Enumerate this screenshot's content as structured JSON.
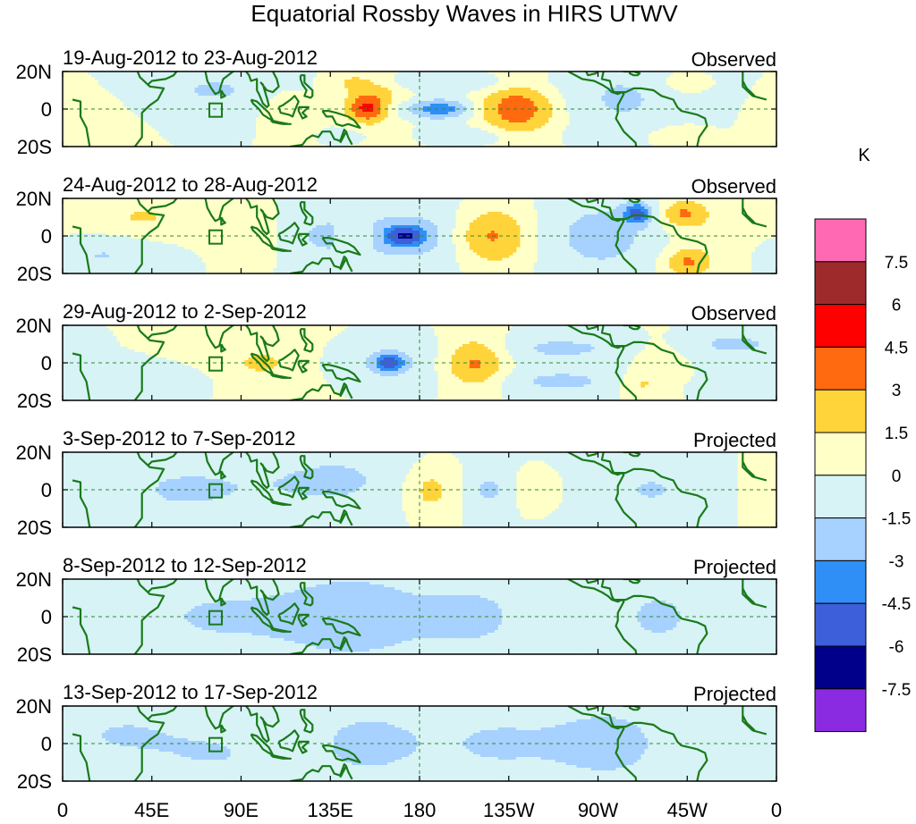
{
  "chart_data": {
    "type": "heatmap",
    "title": "Equatorial Rossby Waves in HIRS UTWV",
    "colorbar": {
      "unit_label": "K",
      "levels": [
        "7.5",
        "6",
        "4.5",
        "3",
        "1.5",
        "0",
        "-1.5",
        "-3",
        "-4.5",
        "-6",
        "-7.5"
      ],
      "colors": [
        "#ff69b4",
        "#9e2a2b",
        "#ff0000",
        "#ff6a10",
        "#ffd43b",
        "#ffffc8",
        "#d7f3f5",
        "#a7d1ff",
        "#2f8ff7",
        "#3d5fd9",
        "#00008b",
        "#8a2be2"
      ]
    },
    "x_ticks": [
      "0",
      "45E",
      "90E",
      "135E",
      "180",
      "135W",
      "90W",
      "45W",
      "0"
    ],
    "y_ticks": [
      "20N",
      "0",
      "20S"
    ],
    "x_range_deg": [
      0,
      360
    ],
    "y_range_deg": [
      -20,
      20
    ],
    "panels": [
      {
        "period": "19-Aug-2012 to 23-Aug-2012",
        "status": "Observed",
        "anomalies": [
          {
            "lon": 112,
            "lat": 0,
            "sx": 10,
            "sy": 9,
            "amp": 1.8
          },
          {
            "lon": 145,
            "lat": 15,
            "sx": 12,
            "sy": 5,
            "amp": 1.8
          },
          {
            "lon": 153,
            "lat": 0,
            "sx": 7,
            "sy": 5,
            "amp": 4.6
          },
          {
            "lon": 168,
            "lat": -15,
            "sx": 10,
            "sy": 5,
            "amp": 1.8
          },
          {
            "lon": 160,
            "lat": 10,
            "sx": 12,
            "sy": 5,
            "amp": 1.7
          },
          {
            "lon": 190,
            "lat": 0,
            "sx": 12,
            "sy": 4,
            "amp": -4.6
          },
          {
            "lon": 192,
            "lat": 14,
            "sx": 30,
            "sy": 4,
            "amp": -2.0
          },
          {
            "lon": 192,
            "lat": -14,
            "sx": 30,
            "sy": 4,
            "amp": -2.0
          },
          {
            "lon": 230,
            "lat": 0,
            "sx": 13,
            "sy": 10,
            "amp": 3.6
          },
          {
            "lon": 280,
            "lat": 5,
            "sx": 25,
            "sy": 15,
            "amp": -1.9
          },
          {
            "lon": 313,
            "lat": 14,
            "sx": 8,
            "sy": 4,
            "amp": 1.6
          },
          {
            "lon": 310,
            "lat": -14,
            "sx": 10,
            "sy": 4,
            "amp": 1.6
          },
          {
            "lon": 77,
            "lat": 10,
            "sx": 40,
            "sy": 12,
            "amp": -1.6
          },
          {
            "lon": 20,
            "lat": 0,
            "sx": 20,
            "sy": 15,
            "amp": 0.8
          },
          {
            "lon": 210,
            "lat": 0,
            "sx": 50,
            "sy": 20,
            "amp": 0.7
          }
        ]
      },
      {
        "period": "24-Aug-2012 to 28-Aug-2012",
        "status": "Observed",
        "anomalies": [
          {
            "lon": 100,
            "lat": 0,
            "sx": 15,
            "sy": 10,
            "amp": 1.2
          },
          {
            "lon": 130,
            "lat": 0,
            "sx": 22,
            "sy": 10,
            "amp": -1.8
          },
          {
            "lon": 150,
            "lat": 0,
            "sx": 8,
            "sy": 4,
            "amp": 1.8
          },
          {
            "lon": 172,
            "lat": 0,
            "sx": 8,
            "sy": 4,
            "amp": -4.6
          },
          {
            "lon": 185,
            "lat": 0,
            "sx": 25,
            "sy": 13,
            "amp": -1.9
          },
          {
            "lon": 215,
            "lat": 0,
            "sx": 14,
            "sy": 11,
            "amp": 4.0
          },
          {
            "lon": 272,
            "lat": 0,
            "sx": 20,
            "sy": 14,
            "amp": -2.2
          },
          {
            "lon": 290,
            "lat": 12,
            "sx": 5,
            "sy": 4,
            "amp": -4.6
          },
          {
            "lon": 313,
            "lat": 12,
            "sx": 8,
            "sy": 5,
            "amp": 3.0
          },
          {
            "lon": 315,
            "lat": -14,
            "sx": 8,
            "sy": 5,
            "amp": 3.0
          },
          {
            "lon": 40,
            "lat": 10,
            "sx": 25,
            "sy": 8,
            "amp": 1.6
          },
          {
            "lon": 20,
            "lat": -10,
            "sx": 20,
            "sy": 8,
            "amp": -1.6
          },
          {
            "lon": 330,
            "lat": 0,
            "sx": 20,
            "sy": 15,
            "amp": 0.8
          }
        ]
      },
      {
        "period": "29-Aug-2012 to 2-Sep-2012",
        "status": "Observed",
        "anomalies": [
          {
            "lon": 160,
            "lat": 0,
            "sx": 22,
            "sy": 10,
            "amp": -1.7
          },
          {
            "lon": 165,
            "lat": 0,
            "sx": 5,
            "sy": 3,
            "amp": -4.6
          },
          {
            "lon": 208,
            "lat": 0,
            "sx": 12,
            "sy": 11,
            "amp": 3.8
          },
          {
            "lon": 250,
            "lat": 8,
            "sx": 35,
            "sy": 6,
            "amp": -1.7
          },
          {
            "lon": 250,
            "lat": -10,
            "sx": 35,
            "sy": 6,
            "amp": -1.7
          },
          {
            "lon": 290,
            "lat": -12,
            "sx": 8,
            "sy": 5,
            "amp": 1.8
          },
          {
            "lon": 300,
            "lat": 0,
            "sx": 10,
            "sy": 10,
            "amp": 1.6
          },
          {
            "lon": 340,
            "lat": 10,
            "sx": 20,
            "sy": 6,
            "amp": -1.7
          },
          {
            "lon": 100,
            "lat": 0,
            "sx": 40,
            "sy": 15,
            "amp": 0.9
          },
          {
            "lon": 40,
            "lat": -10,
            "sx": 25,
            "sy": 8,
            "amp": -1.6
          },
          {
            "lon": 100,
            "lat": 0,
            "sx": 6,
            "sy": 3,
            "amp": 1.7
          }
        ]
      },
      {
        "period": "3-Sep-2012 to 7-Sep-2012",
        "status": "Projected",
        "anomalies": [
          {
            "lon": 185,
            "lat": 0,
            "sx": 10,
            "sy": 10,
            "amp": 2.3
          },
          {
            "lon": 215,
            "lat": 0,
            "sx": 8,
            "sy": 8,
            "amp": -1.7
          },
          {
            "lon": 240,
            "lat": 0,
            "sx": 8,
            "sy": 7,
            "amp": 1.6
          },
          {
            "lon": 140,
            "lat": 5,
            "sx": 30,
            "sy": 15,
            "amp": -1.6
          },
          {
            "lon": 300,
            "lat": 0,
            "sx": 30,
            "sy": 15,
            "amp": -1.6
          },
          {
            "lon": 60,
            "lat": 0,
            "sx": 35,
            "sy": 15,
            "amp": -1.6
          },
          {
            "lon": 345,
            "lat": 0,
            "sx": 20,
            "sy": 15,
            "amp": 0.8
          }
        ]
      },
      {
        "period": "8-Sep-2012 to 12-Sep-2012",
        "status": "Projected",
        "anomalies": [
          {
            "lon": 80,
            "lat": 0,
            "sx": 50,
            "sy": 20,
            "amp": -1.6
          },
          {
            "lon": 150,
            "lat": 0,
            "sx": 25,
            "sy": 20,
            "amp": -1.6
          },
          {
            "lon": 210,
            "lat": 0,
            "sx": 25,
            "sy": 20,
            "amp": -1.6
          },
          {
            "lon": 300,
            "lat": 0,
            "sx": 25,
            "sy": 20,
            "amp": -1.6
          }
        ]
      },
      {
        "period": "13-Sep-2012 to 17-Sep-2012",
        "status": "Projected",
        "anomalies": [
          {
            "lon": 30,
            "lat": 5,
            "sx": 20,
            "sy": 8,
            "amp": -1.6
          },
          {
            "lon": 75,
            "lat": -5,
            "sx": 25,
            "sy": 10,
            "amp": -1.6
          },
          {
            "lon": 150,
            "lat": 0,
            "sx": 20,
            "sy": 15,
            "amp": -1.6
          },
          {
            "lon": 220,
            "lat": 0,
            "sx": 40,
            "sy": 20,
            "amp": -1.6
          },
          {
            "lon": 280,
            "lat": 0,
            "sx": 20,
            "sy": 15,
            "amp": -1.6
          }
        ]
      }
    ]
  },
  "coastlines": [
    [
      [
        9,
        36
      ],
      [
        -6,
        36
      ],
      [
        -10,
        28
      ],
      [
        -17,
        21
      ],
      [
        -17,
        12
      ],
      [
        -12,
        7
      ],
      [
        -5,
        5
      ],
      [
        5,
        5
      ],
      [
        9,
        4
      ],
      [
        9,
        -4
      ],
      [
        12,
        -10
      ],
      [
        14,
        -22
      ],
      [
        18,
        -30
      ],
      [
        20,
        -35
      ],
      [
        27,
        -34
      ],
      [
        33,
        -28
      ],
      [
        35,
        -22
      ],
      [
        40,
        -15
      ],
      [
        40,
        -10
      ],
      [
        40,
        -2
      ],
      [
        44,
        2
      ],
      [
        48,
        5
      ],
      [
        51,
        11
      ],
      [
        44,
        12
      ],
      [
        43,
        13
      ],
      [
        39,
        17
      ],
      [
        35,
        27
      ],
      [
        32,
        31
      ],
      [
        22,
        33
      ],
      [
        10,
        37
      ]
    ],
    [
      [
        43,
        13
      ],
      [
        45,
        15
      ],
      [
        52,
        16
      ],
      [
        56,
        18
      ],
      [
        59,
        22
      ],
      [
        56,
        26
      ],
      [
        51,
        25
      ],
      [
        48,
        30
      ],
      [
        47,
        31
      ]
    ],
    [
      [
        56,
        26
      ],
      [
        61,
        25
      ],
      [
        67,
        24
      ],
      [
        70,
        21
      ],
      [
        72,
        20
      ],
      [
        73,
        15
      ],
      [
        75,
        11
      ],
      [
        77,
        8
      ],
      [
        79,
        9
      ],
      [
        80,
        13
      ],
      [
        81,
        16
      ],
      [
        86,
        20
      ],
      [
        88,
        22
      ],
      [
        91,
        22
      ],
      [
        94,
        18
      ],
      [
        95,
        15
      ],
      [
        98,
        16
      ],
      [
        98,
        10
      ],
      [
        99,
        8
      ],
      [
        101,
        3
      ],
      [
        103,
        1
      ],
      [
        104,
        2
      ],
      [
        103,
        6
      ],
      [
        101,
        13
      ],
      [
        100,
        14
      ],
      [
        103,
        10
      ],
      [
        106,
        9
      ],
      [
        109,
        12
      ],
      [
        108,
        16
      ],
      [
        106,
        20
      ],
      [
        108,
        22
      ],
      [
        110,
        21
      ],
      [
        114,
        22
      ],
      [
        118,
        24
      ],
      [
        120,
        27
      ]
    ],
    [
      [
        80,
        10
      ],
      [
        81,
        8
      ],
      [
        82,
        7
      ],
      [
        80,
        6
      ],
      [
        80,
        10
      ]
    ],
    [
      [
        95,
        5
      ],
      [
        98,
        4
      ],
      [
        101,
        1
      ],
      [
        104,
        -2
      ],
      [
        106,
        -6
      ],
      [
        104,
        -5
      ],
      [
        101,
        -3
      ],
      [
        99,
        0
      ],
      [
        96,
        3
      ],
      [
        95,
        5
      ]
    ],
    [
      [
        105,
        -6
      ],
      [
        109,
        -7
      ],
      [
        114,
        -8
      ],
      [
        115,
        -8
      ],
      [
        111,
        -8
      ],
      [
        106,
        -7
      ],
      [
        105,
        -6
      ]
    ],
    [
      [
        109,
        1
      ],
      [
        110,
        -2
      ],
      [
        114,
        -3
      ],
      [
        116,
        -4
      ],
      [
        117,
        -1
      ],
      [
        119,
        4
      ],
      [
        117,
        7
      ],
      [
        115,
        5
      ],
      [
        111,
        2
      ],
      [
        109,
        1
      ]
    ],
    [
      [
        119,
        1
      ],
      [
        121,
        1
      ],
      [
        124,
        1
      ],
      [
        122,
        -1
      ],
      [
        121,
        -2
      ],
      [
        123,
        -4
      ],
      [
        121,
        -5
      ],
      [
        120,
        -3
      ],
      [
        119,
        -1
      ],
      [
        119,
        1
      ]
    ],
    [
      [
        131,
        -1
      ],
      [
        134,
        -1
      ],
      [
        138,
        -2
      ],
      [
        141,
        -3
      ],
      [
        144,
        -4
      ],
      [
        147,
        -6
      ],
      [
        150,
        -10
      ],
      [
        147,
        -9
      ],
      [
        144,
        -8
      ],
      [
        141,
        -9
      ],
      [
        138,
        -8
      ],
      [
        136,
        -4
      ],
      [
        133,
        -4
      ],
      [
        131,
        -1
      ]
    ],
    [
      [
        120,
        18
      ],
      [
        122,
        18
      ],
      [
        122,
        14
      ],
      [
        124,
        12
      ],
      [
        126,
        10
      ],
      [
        126,
        7
      ],
      [
        125,
        6
      ],
      [
        122,
        7
      ],
      [
        123,
        10
      ],
      [
        121,
        13
      ],
      [
        120,
        16
      ],
      [
        120,
        18
      ]
    ],
    [
      [
        113,
        -22
      ],
      [
        115,
        -20
      ],
      [
        121,
        -19
      ],
      [
        123,
        -16
      ],
      [
        126,
        -14
      ],
      [
        129,
        -15
      ],
      [
        131,
        -12
      ],
      [
        135,
        -12
      ],
      [
        136,
        -14
      ],
      [
        137,
        -16
      ],
      [
        140,
        -17
      ],
      [
        142,
        -11
      ],
      [
        143,
        -12
      ],
      [
        144,
        -15
      ],
      [
        146,
        -19
      ]
    ],
    [
      [
        143,
        -12
      ],
      [
        140,
        -18
      ]
    ],
    [
      [
        -130,
        55
      ],
      [
        -125,
        50
      ],
      [
        -124,
        42
      ],
      [
        -120,
        35
      ],
      [
        -117,
        33
      ],
      [
        -114,
        30
      ],
      [
        -110,
        23
      ],
      [
        -105,
        20
      ],
      [
        -98,
        16
      ],
      [
        -92,
        15
      ],
      [
        -88,
        13
      ],
      [
        -85,
        11
      ],
      [
        -83,
        9
      ],
      [
        -80,
        8
      ],
      [
        -78,
        9
      ],
      [
        -77,
        8
      ],
      [
        -80,
        2
      ],
      [
        -80,
        -2
      ],
      [
        -81,
        -5
      ],
      [
        -77,
        -12
      ],
      [
        -71,
        -18
      ],
      [
        -70,
        -25
      ],
      [
        -71,
        -30
      ],
      [
        -72,
        -36
      ]
    ],
    [
      [
        -97,
        27
      ],
      [
        -97,
        22
      ],
      [
        -95,
        18
      ],
      [
        -91,
        19
      ],
      [
        -90,
        21
      ],
      [
        -87,
        21
      ],
      [
        -88,
        16
      ],
      [
        -84,
        15
      ],
      [
        -83,
        11
      ],
      [
        -82,
        9
      ],
      [
        -79,
        9
      ],
      [
        -76,
        9
      ],
      [
        -72,
        11
      ],
      [
        -68,
        11
      ],
      [
        -62,
        10
      ],
      [
        -58,
        7
      ],
      [
        -52,
        5
      ],
      [
        -50,
        1
      ],
      [
        -48,
        -1
      ],
      [
        -44,
        -2
      ],
      [
        -40,
        -3
      ],
      [
        -36,
        -5
      ],
      [
        -35,
        -9
      ],
      [
        -37,
        -12
      ],
      [
        -39,
        -15
      ],
      [
        -40,
        -20
      ],
      [
        -42,
        -23
      ],
      [
        -45,
        -24
      ],
      [
        -48,
        -26
      ]
    ],
    [
      [
        -82,
        23
      ],
      [
        -80,
        23
      ],
      [
        -77,
        21
      ],
      [
        -74,
        20
      ],
      [
        -77,
        20
      ],
      [
        -80,
        22
      ],
      [
        -82,
        23
      ]
    ],
    [
      [
        -74,
        20
      ],
      [
        -72,
        20
      ],
      [
        -69,
        19
      ],
      [
        -70,
        18
      ],
      [
        -72,
        18
      ],
      [
        -74,
        19
      ],
      [
        -74,
        20
      ]
    ],
    [
      [
        -17,
        15
      ],
      [
        -16,
        13
      ],
      [
        -15,
        11
      ],
      [
        -13,
        9
      ],
      [
        -11,
        7
      ]
    ]
  ]
}
